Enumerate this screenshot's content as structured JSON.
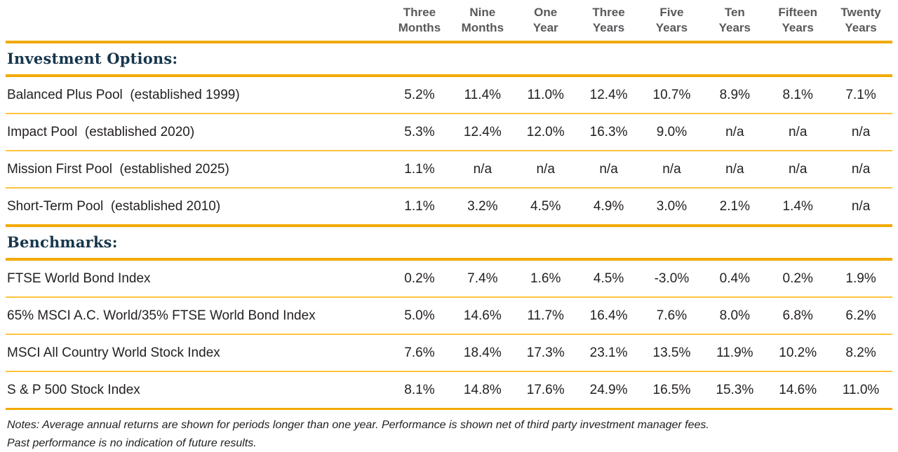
{
  "colors": {
    "accent_thick": "#F2A900",
    "accent_thin": "#FFC43D",
    "heading_navy": "#16364C",
    "body_text": "#231F20",
    "header_gray": "#58595B"
  },
  "chart_data": {
    "type": "table",
    "column_headers": [
      {
        "line1": "Three",
        "line2": "Months"
      },
      {
        "line1": "Nine",
        "line2": "Months"
      },
      {
        "line1": "One",
        "line2": "Year"
      },
      {
        "line1": "Three",
        "line2": "Years"
      },
      {
        "line1": "Five",
        "line2": "Years"
      },
      {
        "line1": "Ten",
        "line2": "Years"
      },
      {
        "line1": "Fifteen",
        "line2": "Years"
      },
      {
        "line1": "Twenty",
        "line2": "Years"
      }
    ],
    "sections": [
      {
        "heading": "Investment Options:",
        "rows": [
          {
            "label": "Balanced Plus Pool  (established 1999)",
            "values": [
              "5.2%",
              "11.4%",
              "11.0%",
              "12.4%",
              "10.7%",
              "8.9%",
              "8.1%",
              "7.1%"
            ]
          },
          {
            "label": "Impact Pool  (established 2020)",
            "values": [
              "5.3%",
              "12.4%",
              "12.0%",
              "16.3%",
              "9.0%",
              "n/a",
              "n/a",
              "n/a"
            ]
          },
          {
            "label": "Mission First Pool  (established 2025)",
            "values": [
              "1.1%",
              "n/a",
              "n/a",
              "n/a",
              "n/a",
              "n/a",
              "n/a",
              "n/a"
            ]
          },
          {
            "label": "Short-Term Pool  (established 2010)",
            "values": [
              "1.1%",
              "3.2%",
              "4.5%",
              "4.9%",
              "3.0%",
              "2.1%",
              "1.4%",
              "n/a"
            ]
          }
        ]
      },
      {
        "heading": "Benchmarks:",
        "rows": [
          {
            "label": "FTSE World Bond Index",
            "values": [
              "0.2%",
              "7.4%",
              "1.6%",
              "4.5%",
              "-3.0%",
              "0.4%",
              "0.2%",
              "1.9%"
            ]
          },
          {
            "label": "65% MSCI A.C. World/35% FTSE World Bond Index",
            "values": [
              "5.0%",
              "14.6%",
              "11.7%",
              "16.4%",
              "7.6%",
              "8.0%",
              "6.8%",
              "6.2%"
            ]
          },
          {
            "label": "MSCI All Country World Stock Index",
            "values": [
              "7.6%",
              "18.4%",
              "17.3%",
              "23.1%",
              "13.5%",
              "11.9%",
              "10.2%",
              "8.2%"
            ]
          },
          {
            "label": "S & P 500 Stock Index",
            "values": [
              "8.1%",
              "14.8%",
              "17.6%",
              "24.9%",
              "16.5%",
              "15.3%",
              "14.6%",
              "11.0%"
            ]
          }
        ]
      }
    ],
    "notes": [
      "Notes: Average annual returns are shown for periods longer than one year. Performance is shown net of third party investment manager fees.",
      "Past performance is no indication of future results."
    ]
  }
}
